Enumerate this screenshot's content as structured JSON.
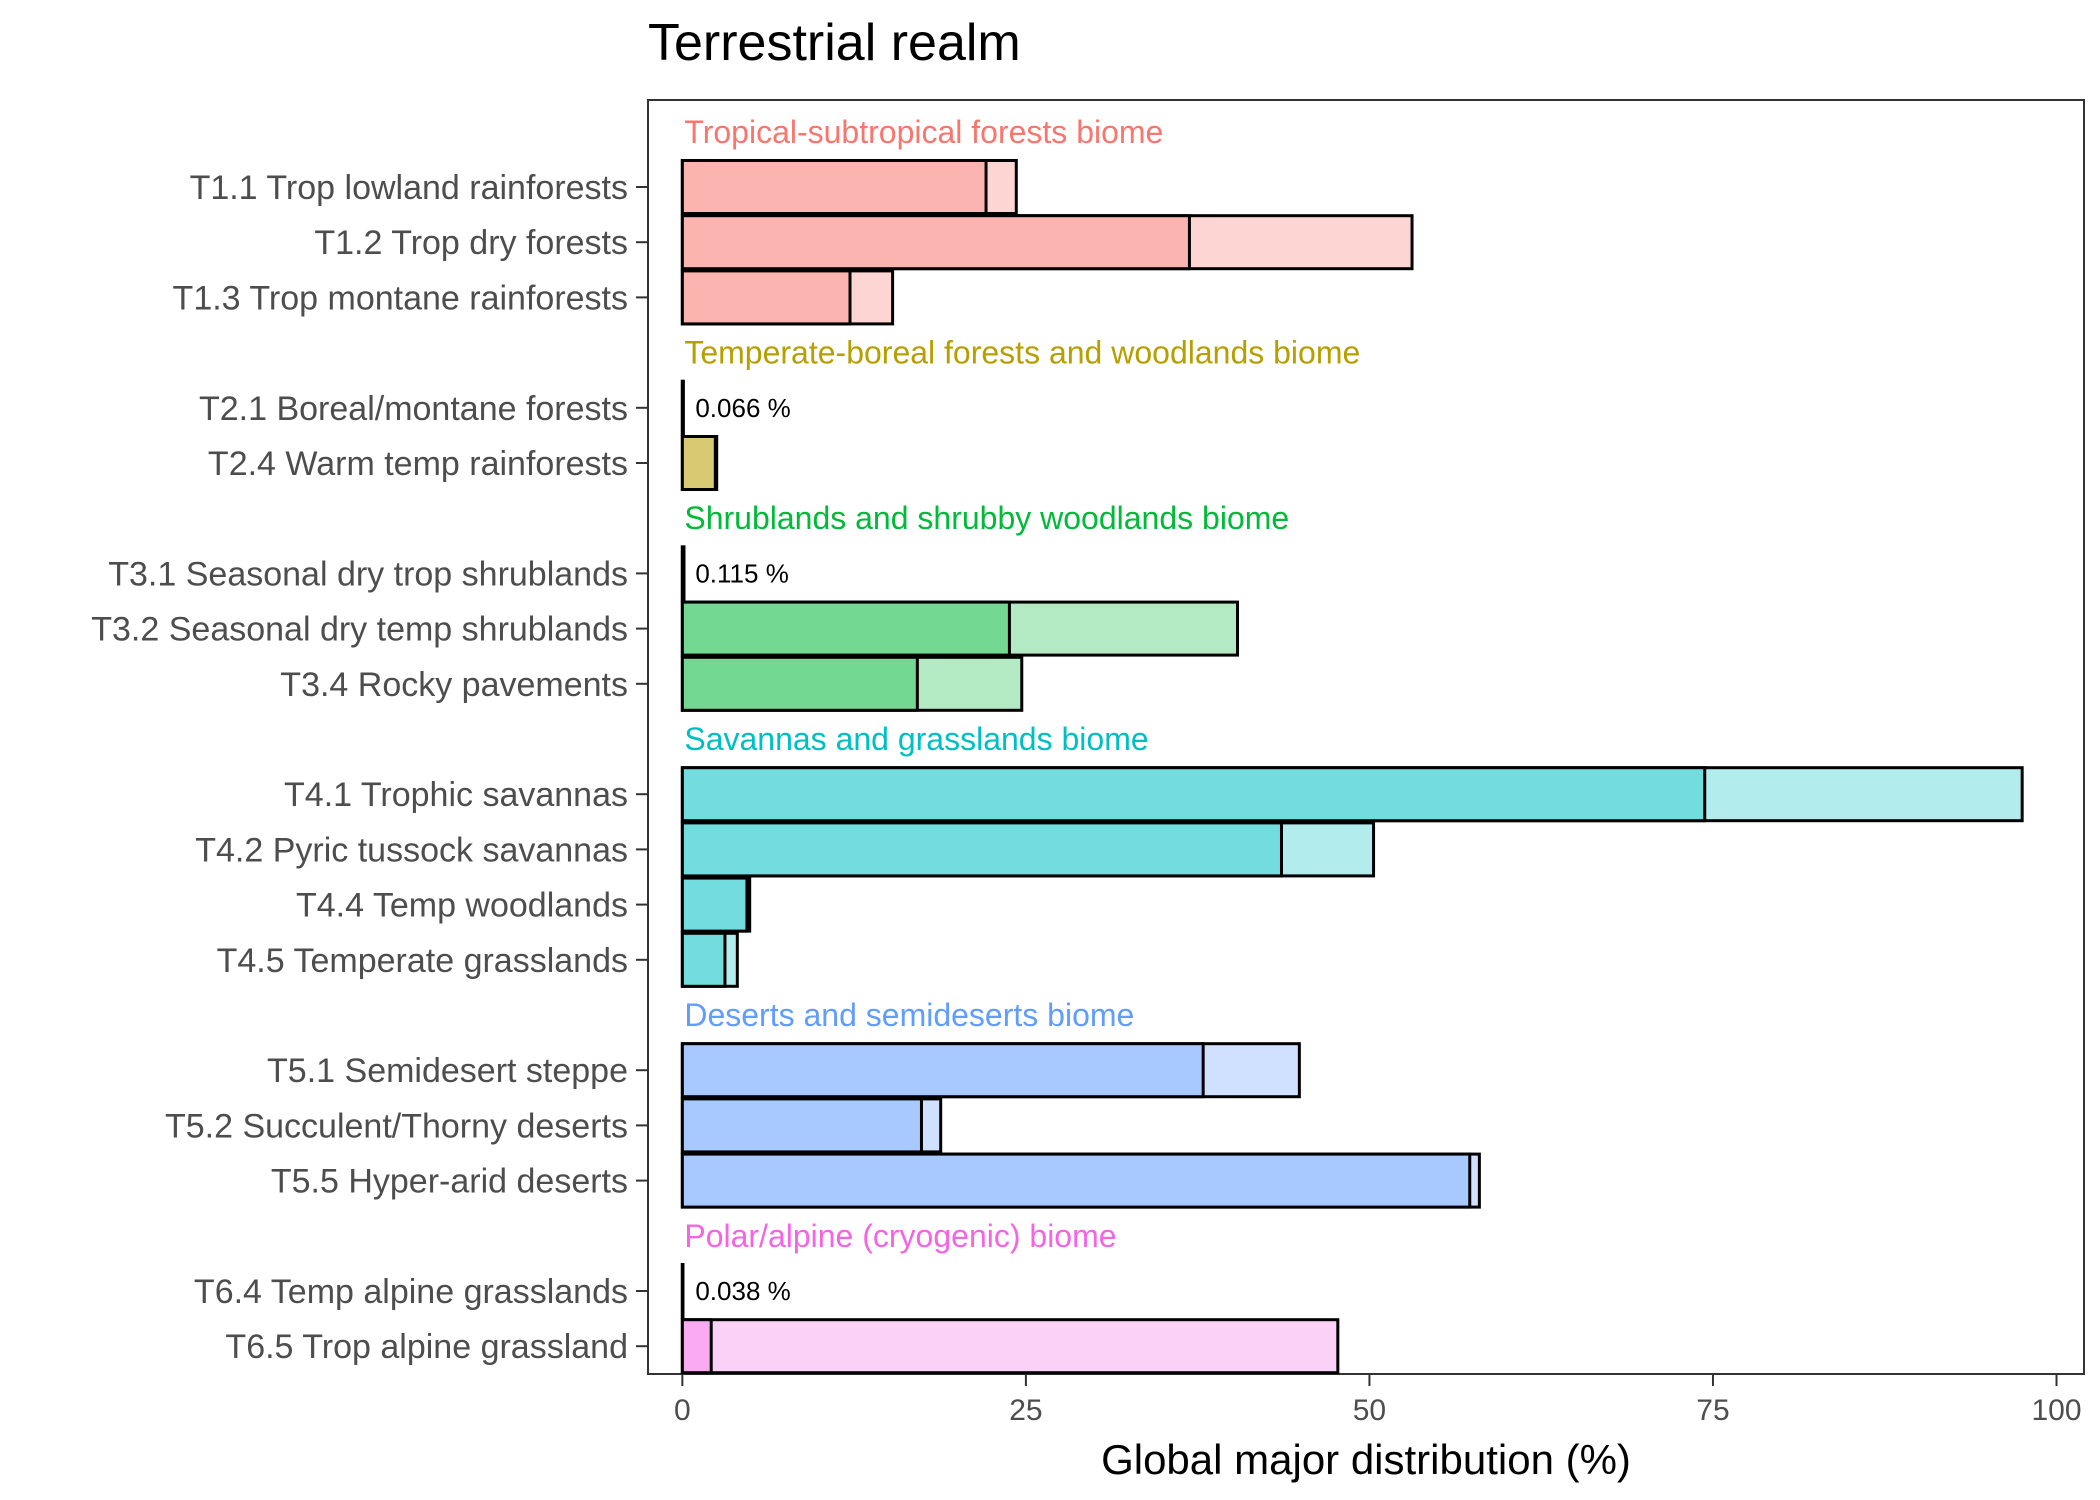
{
  "chart_data": {
    "type": "bar",
    "orientation": "horizontal",
    "title": "Terrestrial realm",
    "xlabel": "Global major distribution (%)",
    "xlim": [
      -2.5,
      102
    ],
    "xticks": [
      0,
      25,
      50,
      75,
      100
    ],
    "grid": false,
    "groups": [
      {
        "name": "Tropical-subtropical forests biome",
        "color": "#F8766D",
        "categories": [
          {
            "label": "T1.1 Trop lowland rainforests",
            "value_inner": 22.1,
            "value_total": 24.3
          },
          {
            "label": "T1.2 Trop dry forests",
            "value_inner": 36.9,
            "value_total": 53.1
          },
          {
            "label": "T1.3 Trop montane rainforests",
            "value_inner": 12.2,
            "value_total": 15.3
          }
        ]
      },
      {
        "name": "Temperate-boreal forests and woodlands biome",
        "color": "#B79F00",
        "categories": [
          {
            "label": "T2.1 Boreal/montane forests",
            "value_inner": 0.066,
            "value_total": 0.066,
            "annotation": "0.066 %"
          },
          {
            "label": "T2.4 Warm temp rainforests",
            "value_inner": 2.4,
            "value_total": 2.5
          }
        ]
      },
      {
        "name": "Shrublands and shrubby woodlands biome",
        "color": "#00BA38",
        "categories": [
          {
            "label": "T3.1 Seasonal dry trop shrublands",
            "value_inner": 0.115,
            "value_total": 0.115,
            "annotation": "0.115 %"
          },
          {
            "label": "T3.2 Seasonal dry temp shrublands",
            "value_inner": 23.8,
            "value_total": 40.4
          },
          {
            "label": "T3.4 Rocky pavements",
            "value_inner": 17.1,
            "value_total": 24.7
          }
        ]
      },
      {
        "name": "Savannas and grasslands biome",
        "color": "#00BFC4",
        "categories": [
          {
            "label": "T4.1 Trophic savannas",
            "value_inner": 74.4,
            "value_total": 97.5
          },
          {
            "label": "T4.2 Pyric tussock savannas",
            "value_inner": 43.6,
            "value_total": 50.3
          },
          {
            "label": "T4.4 Temp woodlands",
            "value_inner": 4.7,
            "value_total": 4.9
          },
          {
            "label": "T4.5 Temperate grasslands",
            "value_inner": 3.1,
            "value_total": 4.0
          }
        ]
      },
      {
        "name": "Deserts and semideserts biome",
        "color": "#619CFF",
        "categories": [
          {
            "label": "T5.1 Semidesert steppe",
            "value_inner": 37.9,
            "value_total": 44.9
          },
          {
            "label": "T5.2 Succulent/Thorny deserts",
            "value_inner": 17.4,
            "value_total": 18.8
          },
          {
            "label": "T5.5 Hyper-arid deserts",
            "value_inner": 57.3,
            "value_total": 58.0
          }
        ]
      },
      {
        "name": "Polar/alpine (cryogenic) biome",
        "color": "#F564E3",
        "categories": [
          {
            "label": "T6.4 Temp alpine grasslands",
            "value_inner": 0.038,
            "value_total": 0.038,
            "annotation": "0.038 %"
          },
          {
            "label": "T6.5 Trop alpine grassland",
            "value_inner": 2.1,
            "value_total": 47.7
          }
        ]
      }
    ]
  }
}
